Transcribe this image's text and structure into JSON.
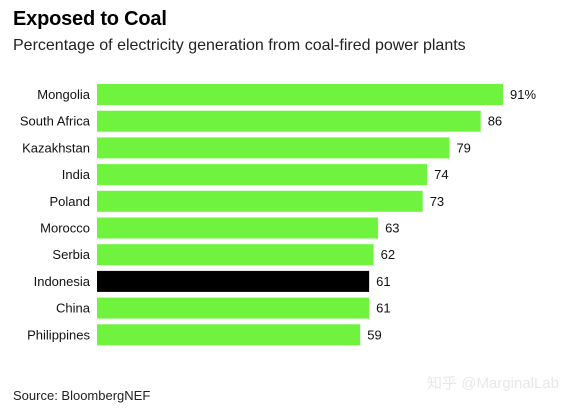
{
  "title": "Exposed to Coal",
  "subtitle": "Percentage of electricity generation from coal-fired power plants",
  "source": "Source: BloombergNEF",
  "watermark": "知乎 @MarginalLab",
  "colors": {
    "bar": "#6ff33f",
    "highlight": "#000000"
  },
  "chart_data": {
    "type": "bar",
    "orientation": "horizontal",
    "categories": [
      "Mongolia",
      "South Africa",
      "Kazakhstan",
      "India",
      "Poland",
      "Morocco",
      "Serbia",
      "Indonesia",
      "China",
      "Philippines"
    ],
    "values": [
      91,
      86,
      79,
      74,
      73,
      63,
      62,
      61,
      61,
      59
    ],
    "value_labels": [
      "91%",
      "86",
      "79",
      "74",
      "73",
      "63",
      "62",
      "61",
      "61",
      "59"
    ],
    "highlight": "Indonesia",
    "unit": "%",
    "xlim": [
      0,
      91
    ],
    "grid": false,
    "title": "Exposed to Coal",
    "subtitle": "Percentage of electricity generation from coal-fired power plants"
  }
}
